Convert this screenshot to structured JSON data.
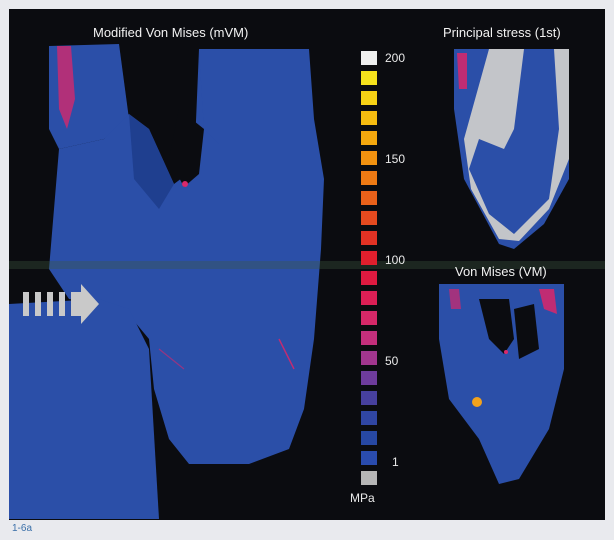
{
  "figure": {
    "label": "1-6a",
    "main_panel_title": "Modified Von Mises (mVM)",
    "top_right_title": "Principal stress (1st)",
    "bottom_right_title": "Von Mises (VM)"
  },
  "colorbar": {
    "unit": "MPa",
    "ticks": [
      "200",
      "150",
      "100",
      "50",
      "1"
    ],
    "colors": [
      "#efefef",
      "#f6e21c",
      "#f7d215",
      "#f6bc10",
      "#f5a80e",
      "#f29210",
      "#ee7a14",
      "#e9611a",
      "#e54a1f",
      "#e23224",
      "#e01f2d",
      "#de1a40",
      "#dc1f55",
      "#d62868",
      "#c42f7c",
      "#a1368e",
      "#6e3c9c",
      "#47409e",
      "#3046a3",
      "#2748a3",
      "#2a4cae",
      "#b6b6b6"
    ]
  },
  "colors": {
    "background": "#0b0c10",
    "structure_blue": "#2b4fa8",
    "structure_shade": "#1f3f8f",
    "stress_grey": "#c3c5c9",
    "stress_pink": "#d8296b",
    "arrow": "#c9c9c9"
  }
}
